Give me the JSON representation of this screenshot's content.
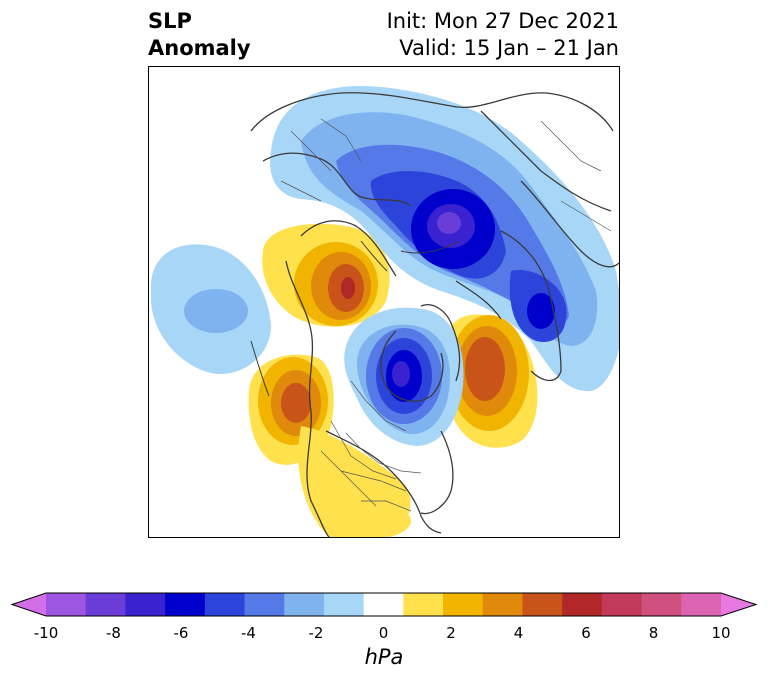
{
  "title": {
    "left_line1": "SLP",
    "left_line2": "Anomaly",
    "right_line1": "Init: Mon 27 Dec 2021",
    "right_line2": "Valid: 15 Jan – 21 Jan"
  },
  "colorbar": {
    "ticks": [
      "-10",
      "-8",
      "-6",
      "-4",
      "-2",
      "0",
      "2",
      "4",
      "6",
      "8",
      "10"
    ],
    "unit": "hPa",
    "colors": [
      "#d36fe6",
      "#9e55e0",
      "#6a3cd8",
      "#3a22d0",
      "#0000cc",
      "#2c44da",
      "#5579e6",
      "#7fb3f0",
      "#a8d6f7",
      "#ffffff",
      "#ffe14d",
      "#f1b400",
      "#e08a0c",
      "#c8541a",
      "#b22828",
      "#c23a5a",
      "#d0507e",
      "#dc62b2",
      "#e77ae0"
    ]
  }
}
